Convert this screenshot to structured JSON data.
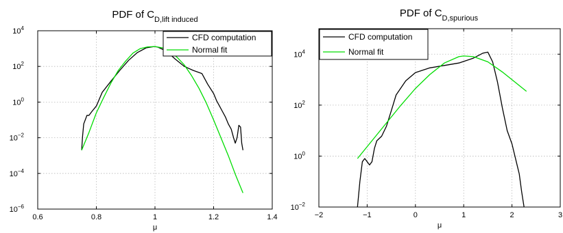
{
  "colors": {
    "cfd": "#000000",
    "fit": "#00dd00"
  },
  "chart_data": [
    {
      "type": "line",
      "title": {
        "main": "PDF of C",
        "sub": "D,lift induced"
      },
      "xlabel": "μ",
      "ylabel": "",
      "xlim": [
        0.6,
        1.4
      ],
      "ylim": [
        1e-06,
        10000.0
      ],
      "yscale": "log",
      "grid": true,
      "legend_position": "top-right",
      "xticks": [
        {
          "v": 0.6,
          "label": "0.6"
        },
        {
          "v": 0.8,
          "label": "0.8"
        },
        {
          "v": 1.0,
          "label": "1"
        },
        {
          "v": 1.2,
          "label": "1.2"
        },
        {
          "v": 1.4,
          "label": "1.4"
        }
      ],
      "yticks": [
        {
          "v": 1e-06,
          "base": "10",
          "exp": "−6"
        },
        {
          "v": 0.0001,
          "base": "10",
          "exp": "−4"
        },
        {
          "v": 0.01,
          "base": "10",
          "exp": "−2"
        },
        {
          "v": 1,
          "base": "10",
          "exp": "0"
        },
        {
          "v": 100.0,
          "base": "10",
          "exp": "2"
        },
        {
          "v": 10000.0,
          "base": "10",
          "exp": "4"
        }
      ],
      "series": [
        {
          "name": "CFD computation",
          "color": "#000000",
          "x": [
            0.75,
            0.753,
            0.757,
            0.762,
            0.768,
            0.775,
            0.785,
            0.8,
            0.82,
            0.85,
            0.88,
            0.91,
            0.94,
            0.97,
            0.99,
            1.0,
            1.01,
            1.04,
            1.07,
            1.1,
            1.13,
            1.16,
            1.18,
            1.2,
            1.21,
            1.22,
            1.23,
            1.24,
            1.25,
            1.26,
            1.268,
            1.274,
            1.28,
            1.286,
            1.292,
            1.296,
            1.3
          ],
          "y": [
            0.002,
            0.012,
            0.06,
            0.1,
            0.18,
            0.18,
            0.3,
            0.6,
            3.5,
            15,
            60,
            220,
            600,
            1100,
            1250,
            1300,
            1200,
            700,
            250,
            100,
            60,
            40,
            10,
            3,
            1.2,
            0.6,
            0.3,
            0.15,
            0.06,
            0.03,
            0.01,
            0.005,
            0.01,
            0.05,
            0.04,
            0.005,
            0.002
          ]
        },
        {
          "name": "Normal fit",
          "color": "#00dd00",
          "x": [
            0.75,
            0.775,
            0.8,
            0.825,
            0.85,
            0.875,
            0.9,
            0.925,
            0.95,
            0.975,
            1.0,
            1.025,
            1.05,
            1.075,
            1.1,
            1.125,
            1.15,
            1.175,
            1.2,
            1.225,
            1.25,
            1.275,
            1.3
          ],
          "y": [
            0.002,
            0.02,
            0.25,
            1.8,
            12,
            60,
            200,
            560,
            1000,
            1250,
            1300,
            1100,
            700,
            330,
            120,
            30,
            6,
            0.9,
            0.1,
            0.01,
            0.001,
            8e-05,
            8e-06
          ]
        }
      ]
    },
    {
      "type": "line",
      "title": {
        "main": "PDF of C",
        "sub": "D,spurious"
      },
      "xlabel": "μ",
      "ylabel": "",
      "xlim": [
        -2,
        3
      ],
      "ylim": [
        0.01,
        100000.0
      ],
      "yscale": "log",
      "grid": true,
      "legend_position": "top-left",
      "xticks": [
        {
          "v": -2,
          "label": "−2"
        },
        {
          "v": -1,
          "label": "−1"
        },
        {
          "v": 0,
          "label": "0"
        },
        {
          "v": 1,
          "label": "1"
        },
        {
          "v": 2,
          "label": "2"
        },
        {
          "v": 3,
          "label": "3"
        }
      ],
      "yticks": [
        {
          "v": 0.01,
          "base": "10",
          "exp": "−2"
        },
        {
          "v": 1,
          "base": "10",
          "exp": "0"
        },
        {
          "v": 100.0,
          "base": "10",
          "exp": "2"
        },
        {
          "v": 10000.0,
          "base": "10",
          "exp": "4"
        }
      ],
      "series": [
        {
          "name": "CFD computation",
          "color": "#000000",
          "x": [
            -1.2,
            -1.15,
            -1.1,
            -1.05,
            -1.0,
            -0.95,
            -0.9,
            -0.85,
            -0.8,
            -0.7,
            -0.6,
            -0.5,
            -0.4,
            -0.2,
            0.0,
            0.3,
            0.6,
            0.9,
            1.2,
            1.4,
            1.5,
            1.6,
            1.7,
            1.8,
            1.9,
            2.0,
            2.1,
            2.15,
            2.2,
            2.25,
            2.3
          ],
          "y": [
            0.01,
            0.1,
            0.6,
            0.8,
            0.6,
            0.45,
            0.6,
            2,
            4,
            6,
            15,
            60,
            250,
            900,
            1900,
            2900,
            3600,
            4500,
            7000,
            11000,
            12000,
            5000,
            800,
            80,
            10,
            3,
            0.5,
            0.2,
            0.04,
            0.01,
            0.005
          ]
        },
        {
          "name": "Normal fit",
          "color": "#00dd00",
          "x": [
            -1.2,
            -0.9,
            -0.6,
            -0.3,
            0.0,
            0.3,
            0.6,
            0.9,
            1.0,
            1.2,
            1.5,
            1.8,
            2.1,
            2.3
          ],
          "y": [
            0.8,
            4,
            20,
            100,
            450,
            1600,
            4500,
            8000,
            8500,
            8000,
            5000,
            2000,
            700,
            350
          ]
        }
      ]
    }
  ]
}
